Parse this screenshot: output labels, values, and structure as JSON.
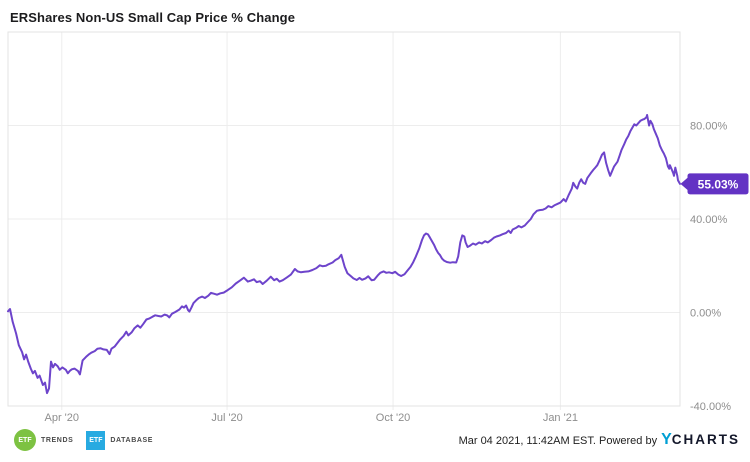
{
  "header": {
    "title": "ERShares Non-US Small Cap Price % Change"
  },
  "footer": {
    "etf_trends": {
      "badge_text": "ETF",
      "label": "TRENDS",
      "color": "#7dc242"
    },
    "etf_database": {
      "badge_text": "ETF",
      "label": "DATABASE",
      "color": "#27aae1"
    },
    "timestamp": "Mar 04 2021, 11:42AM EST. Powered by",
    "ycharts_logo": {
      "y": "Y",
      "rest": "CHARTS",
      "y_color": "#009fd4",
      "rest_color": "#14182b"
    }
  },
  "chart_data": {
    "type": "line",
    "title": "ERShares Non-US Small Cap Price % Change",
    "series_name": "ERShares Non-US Small Cap Price % Change",
    "line_color": "#6d44cb",
    "badge_color": "#6333c4",
    "badge_text_color": "#ffffff",
    "grid": true,
    "grid_color": "#ededed",
    "border_color": "#e3e3e3",
    "tick_label_color": "#8e8e8e",
    "x_range_note": "time axis from Mar 2020 to Mar 04 2021, f = fraction along axis",
    "x_ticks": [
      {
        "label": "Apr '20",
        "f": 0.08
      },
      {
        "label": "Jul '20",
        "f": 0.326
      },
      {
        "label": "Oct '20",
        "f": 0.573
      },
      {
        "label": "Jan '21",
        "f": 0.822
      }
    ],
    "y_ticks": [
      {
        "label": "80.00%",
        "value": 80
      },
      {
        "label": "40.00%",
        "value": 40
      },
      {
        "label": "0.00%",
        "value": 0
      },
      {
        "label": "-40.00%",
        "value": -40
      }
    ],
    "y_domain": [
      -40,
      120
    ],
    "ylabel": "Price % Change",
    "last_value": 55.03,
    "last_value_label": "55.03%",
    "points": [
      [
        0.0,
        0.5
      ],
      [
        0.003,
        1.5
      ],
      [
        0.007,
        -4
      ],
      [
        0.012,
        -9
      ],
      [
        0.016,
        -14
      ],
      [
        0.021,
        -17
      ],
      [
        0.024,
        -20
      ],
      [
        0.027,
        -18
      ],
      [
        0.03,
        -21
      ],
      [
        0.034,
        -24
      ],
      [
        0.037,
        -26
      ],
      [
        0.04,
        -25
      ],
      [
        0.044,
        -28
      ],
      [
        0.047,
        -27
      ],
      [
        0.052,
        -31
      ],
      [
        0.055,
        -30
      ],
      [
        0.058,
        -34.5
      ],
      [
        0.061,
        -32.5
      ],
      [
        0.064,
        -21
      ],
      [
        0.067,
        -23.5
      ],
      [
        0.07,
        -22
      ],
      [
        0.074,
        -23
      ],
      [
        0.077,
        -24.5
      ],
      [
        0.081,
        -23.5
      ],
      [
        0.086,
        -24.5
      ],
      [
        0.089,
        -26
      ],
      [
        0.092,
        -25
      ],
      [
        0.095,
        -24.3
      ],
      [
        0.099,
        -24
      ],
      [
        0.104,
        -25
      ],
      [
        0.107,
        -26.5
      ],
      [
        0.111,
        -20.5
      ],
      [
        0.116,
        -19
      ],
      [
        0.12,
        -18
      ],
      [
        0.124,
        -17.2
      ],
      [
        0.129,
        -16.5
      ],
      [
        0.133,
        -15.5
      ],
      [
        0.138,
        -15.3
      ],
      [
        0.142,
        -15.8
      ],
      [
        0.147,
        -16
      ],
      [
        0.151,
        -17.8
      ],
      [
        0.154,
        -15.5
      ],
      [
        0.159,
        -14.5
      ],
      [
        0.163,
        -13
      ],
      [
        0.167,
        -11.5
      ],
      [
        0.172,
        -10
      ],
      [
        0.176,
        -8.2
      ],
      [
        0.179,
        -9.8
      ],
      [
        0.184,
        -8.5
      ],
      [
        0.188,
        -6.8
      ],
      [
        0.193,
        -5.5
      ],
      [
        0.197,
        -6.5
      ],
      [
        0.201,
        -5
      ],
      [
        0.206,
        -3
      ],
      [
        0.21,
        -2.6
      ],
      [
        0.215,
        -1.8
      ],
      [
        0.219,
        -1.2
      ],
      [
        0.224,
        -1.5
      ],
      [
        0.228,
        -1.7
      ],
      [
        0.233,
        -0.9
      ],
      [
        0.237,
        -1.3
      ],
      [
        0.24,
        -2.1
      ],
      [
        0.244,
        -0.5
      ],
      [
        0.249,
        0.2
      ],
      [
        0.255,
        1.3
      ],
      [
        0.259,
        2.6
      ],
      [
        0.262,
        2.1
      ],
      [
        0.265,
        3.0
      ],
      [
        0.268,
        1.0
      ],
      [
        0.27,
        0.4
      ],
      [
        0.273,
        2.2
      ],
      [
        0.276,
        4.0
      ],
      [
        0.28,
        5.2
      ],
      [
        0.284,
        6.2
      ],
      [
        0.289,
        6.8
      ],
      [
        0.293,
        6.2
      ],
      [
        0.298,
        7.2
      ],
      [
        0.302,
        8.4
      ],
      [
        0.307,
        8.0
      ],
      [
        0.311,
        7.6
      ],
      [
        0.316,
        8.2
      ],
      [
        0.321,
        8.5
      ],
      [
        0.327,
        9.6
      ],
      [
        0.333,
        10.8
      ],
      [
        0.339,
        12.4
      ],
      [
        0.345,
        13.6
      ],
      [
        0.351,
        14.9
      ],
      [
        0.357,
        13.2
      ],
      [
        0.361,
        13.6
      ],
      [
        0.366,
        14.2
      ],
      [
        0.37,
        13.0
      ],
      [
        0.375,
        13.4
      ],
      [
        0.379,
        12.2
      ],
      [
        0.385,
        13.6
      ],
      [
        0.391,
        15.3
      ],
      [
        0.396,
        13.8
      ],
      [
        0.4,
        14.4
      ],
      [
        0.404,
        13.2
      ],
      [
        0.409,
        13.8
      ],
      [
        0.415,
        15.0
      ],
      [
        0.421,
        16.2
      ],
      [
        0.427,
        18.6
      ],
      [
        0.431,
        17.6
      ],
      [
        0.436,
        17.2
      ],
      [
        0.441,
        17.4
      ],
      [
        0.447,
        17.6
      ],
      [
        0.453,
        18.2
      ],
      [
        0.459,
        19.0
      ],
      [
        0.464,
        20.2
      ],
      [
        0.468,
        19.8
      ],
      [
        0.473,
        20.0
      ],
      [
        0.477,
        20.6
      ],
      [
        0.483,
        21.4
      ],
      [
        0.487,
        22.4
      ],
      [
        0.492,
        23.2
      ],
      [
        0.496,
        24.7
      ],
      [
        0.501,
        19.5
      ],
      [
        0.505,
        16.8
      ],
      [
        0.51,
        15.6
      ],
      [
        0.514,
        14.6
      ],
      [
        0.519,
        13.9
      ],
      [
        0.523,
        14.8
      ],
      [
        0.527,
        14.0
      ],
      [
        0.532,
        14.6
      ],
      [
        0.536,
        15.5
      ],
      [
        0.541,
        13.8
      ],
      [
        0.545,
        14.0
      ],
      [
        0.55,
        15.8
      ],
      [
        0.554,
        17.0
      ],
      [
        0.559,
        17.6
      ],
      [
        0.563,
        17.0
      ],
      [
        0.567,
        17.2
      ],
      [
        0.572,
        16.8
      ],
      [
        0.576,
        17.4
      ],
      [
        0.581,
        16.2
      ],
      [
        0.585,
        15.6
      ],
      [
        0.59,
        16.4
      ],
      [
        0.594,
        17.8
      ],
      [
        0.599,
        19.5
      ],
      [
        0.603,
        21.5
      ],
      [
        0.607,
        24.0
      ],
      [
        0.612,
        27.5
      ],
      [
        0.616,
        31.0
      ],
      [
        0.619,
        33.0
      ],
      [
        0.622,
        33.8
      ],
      [
        0.625,
        33.4
      ],
      [
        0.628,
        32.0
      ],
      [
        0.631,
        30.5
      ],
      [
        0.634,
        29.0
      ],
      [
        0.637,
        27.0
      ],
      [
        0.64,
        25.5
      ],
      [
        0.643,
        24.5
      ],
      [
        0.646,
        23.0
      ],
      [
        0.649,
        22.2
      ],
      [
        0.653,
        21.6
      ],
      [
        0.658,
        21.3
      ],
      [
        0.662,
        21.5
      ],
      [
        0.667,
        21.4
      ],
      [
        0.67,
        24.0
      ],
      [
        0.673,
        30.0
      ],
      [
        0.676,
        33.0
      ],
      [
        0.679,
        32.5
      ],
      [
        0.681,
        30.0
      ],
      [
        0.684,
        28.0
      ],
      [
        0.687,
        28.5
      ],
      [
        0.692,
        29.5
      ],
      [
        0.696,
        29.0
      ],
      [
        0.701,
        30.0
      ],
      [
        0.705,
        29.5
      ],
      [
        0.71,
        30.5
      ],
      [
        0.714,
        30.0
      ],
      [
        0.719,
        31.0
      ],
      [
        0.723,
        32.0
      ],
      [
        0.727,
        32.5
      ],
      [
        0.732,
        33.0
      ],
      [
        0.736,
        33.5
      ],
      [
        0.741,
        34.0
      ],
      [
        0.745,
        35.0
      ],
      [
        0.748,
        34.0
      ],
      [
        0.751,
        35.5
      ],
      [
        0.756,
        36.2
      ],
      [
        0.76,
        37.0
      ],
      [
        0.764,
        36.4
      ],
      [
        0.769,
        37.2
      ],
      [
        0.773,
        38.5
      ],
      [
        0.778,
        40.0
      ],
      [
        0.782,
        42.0
      ],
      [
        0.787,
        43.5
      ],
      [
        0.791,
        43.8
      ],
      [
        0.796,
        44.0
      ],
      [
        0.8,
        44.5
      ],
      [
        0.804,
        45.5
      ],
      [
        0.809,
        45.0
      ],
      [
        0.813,
        45.8
      ],
      [
        0.818,
        46.5
      ],
      [
        0.822,
        47.0
      ],
      [
        0.827,
        48.5
      ],
      [
        0.83,
        47.5
      ],
      [
        0.834,
        50.0
      ],
      [
        0.839,
        53.0
      ],
      [
        0.841,
        55.5
      ],
      [
        0.844,
        54.0
      ],
      [
        0.847,
        53.0
      ],
      [
        0.85,
        55.5
      ],
      [
        0.853,
        57.0
      ],
      [
        0.856,
        55.5
      ],
      [
        0.859,
        55.0
      ],
      [
        0.862,
        57.5
      ],
      [
        0.867,
        59.5
      ],
      [
        0.871,
        61.0
      ],
      [
        0.874,
        62.0
      ],
      [
        0.877,
        63.0
      ],
      [
        0.881,
        65.5
      ],
      [
        0.884,
        67.5
      ],
      [
        0.887,
        68.5
      ],
      [
        0.89,
        64.0
      ],
      [
        0.893,
        61.0
      ],
      [
        0.896,
        58.5
      ],
      [
        0.899,
        60.5
      ],
      [
        0.902,
        62.5
      ],
      [
        0.907,
        64.5
      ],
      [
        0.91,
        67.0
      ],
      [
        0.913,
        69.5
      ],
      [
        0.917,
        72.0
      ],
      [
        0.92,
        74.0
      ],
      [
        0.923,
        75.5
      ],
      [
        0.926,
        77.5
      ],
      [
        0.929,
        79.0
      ],
      [
        0.932,
        80.5
      ],
      [
        0.935,
        80.0
      ],
      [
        0.938,
        81.0
      ],
      [
        0.941,
        82.0
      ],
      [
        0.944,
        82.5
      ],
      [
        0.947,
        82.8
      ],
      [
        0.95,
        83.5
      ],
      [
        0.951,
        84.5
      ],
      [
        0.953,
        81.5
      ],
      [
        0.954,
        80.0
      ],
      [
        0.956,
        82.0
      ],
      [
        0.959,
        80.5
      ],
      [
        0.961,
        78.5
      ],
      [
        0.964,
        76.5
      ],
      [
        0.967,
        74.5
      ],
      [
        0.97,
        71.5
      ],
      [
        0.973,
        69.5
      ],
      [
        0.976,
        68.0
      ],
      [
        0.979,
        66.0
      ],
      [
        0.982,
        62.5
      ],
      [
        0.984,
        61.5
      ],
      [
        0.985,
        63.0
      ],
      [
        0.988,
        61.0
      ],
      [
        0.99,
        59.5
      ],
      [
        0.991,
        58.5
      ],
      [
        0.993,
        62.0
      ],
      [
        0.996,
        58.5
      ],
      [
        0.997,
        56.5
      ],
      [
        1.0,
        55.03
      ]
    ]
  }
}
